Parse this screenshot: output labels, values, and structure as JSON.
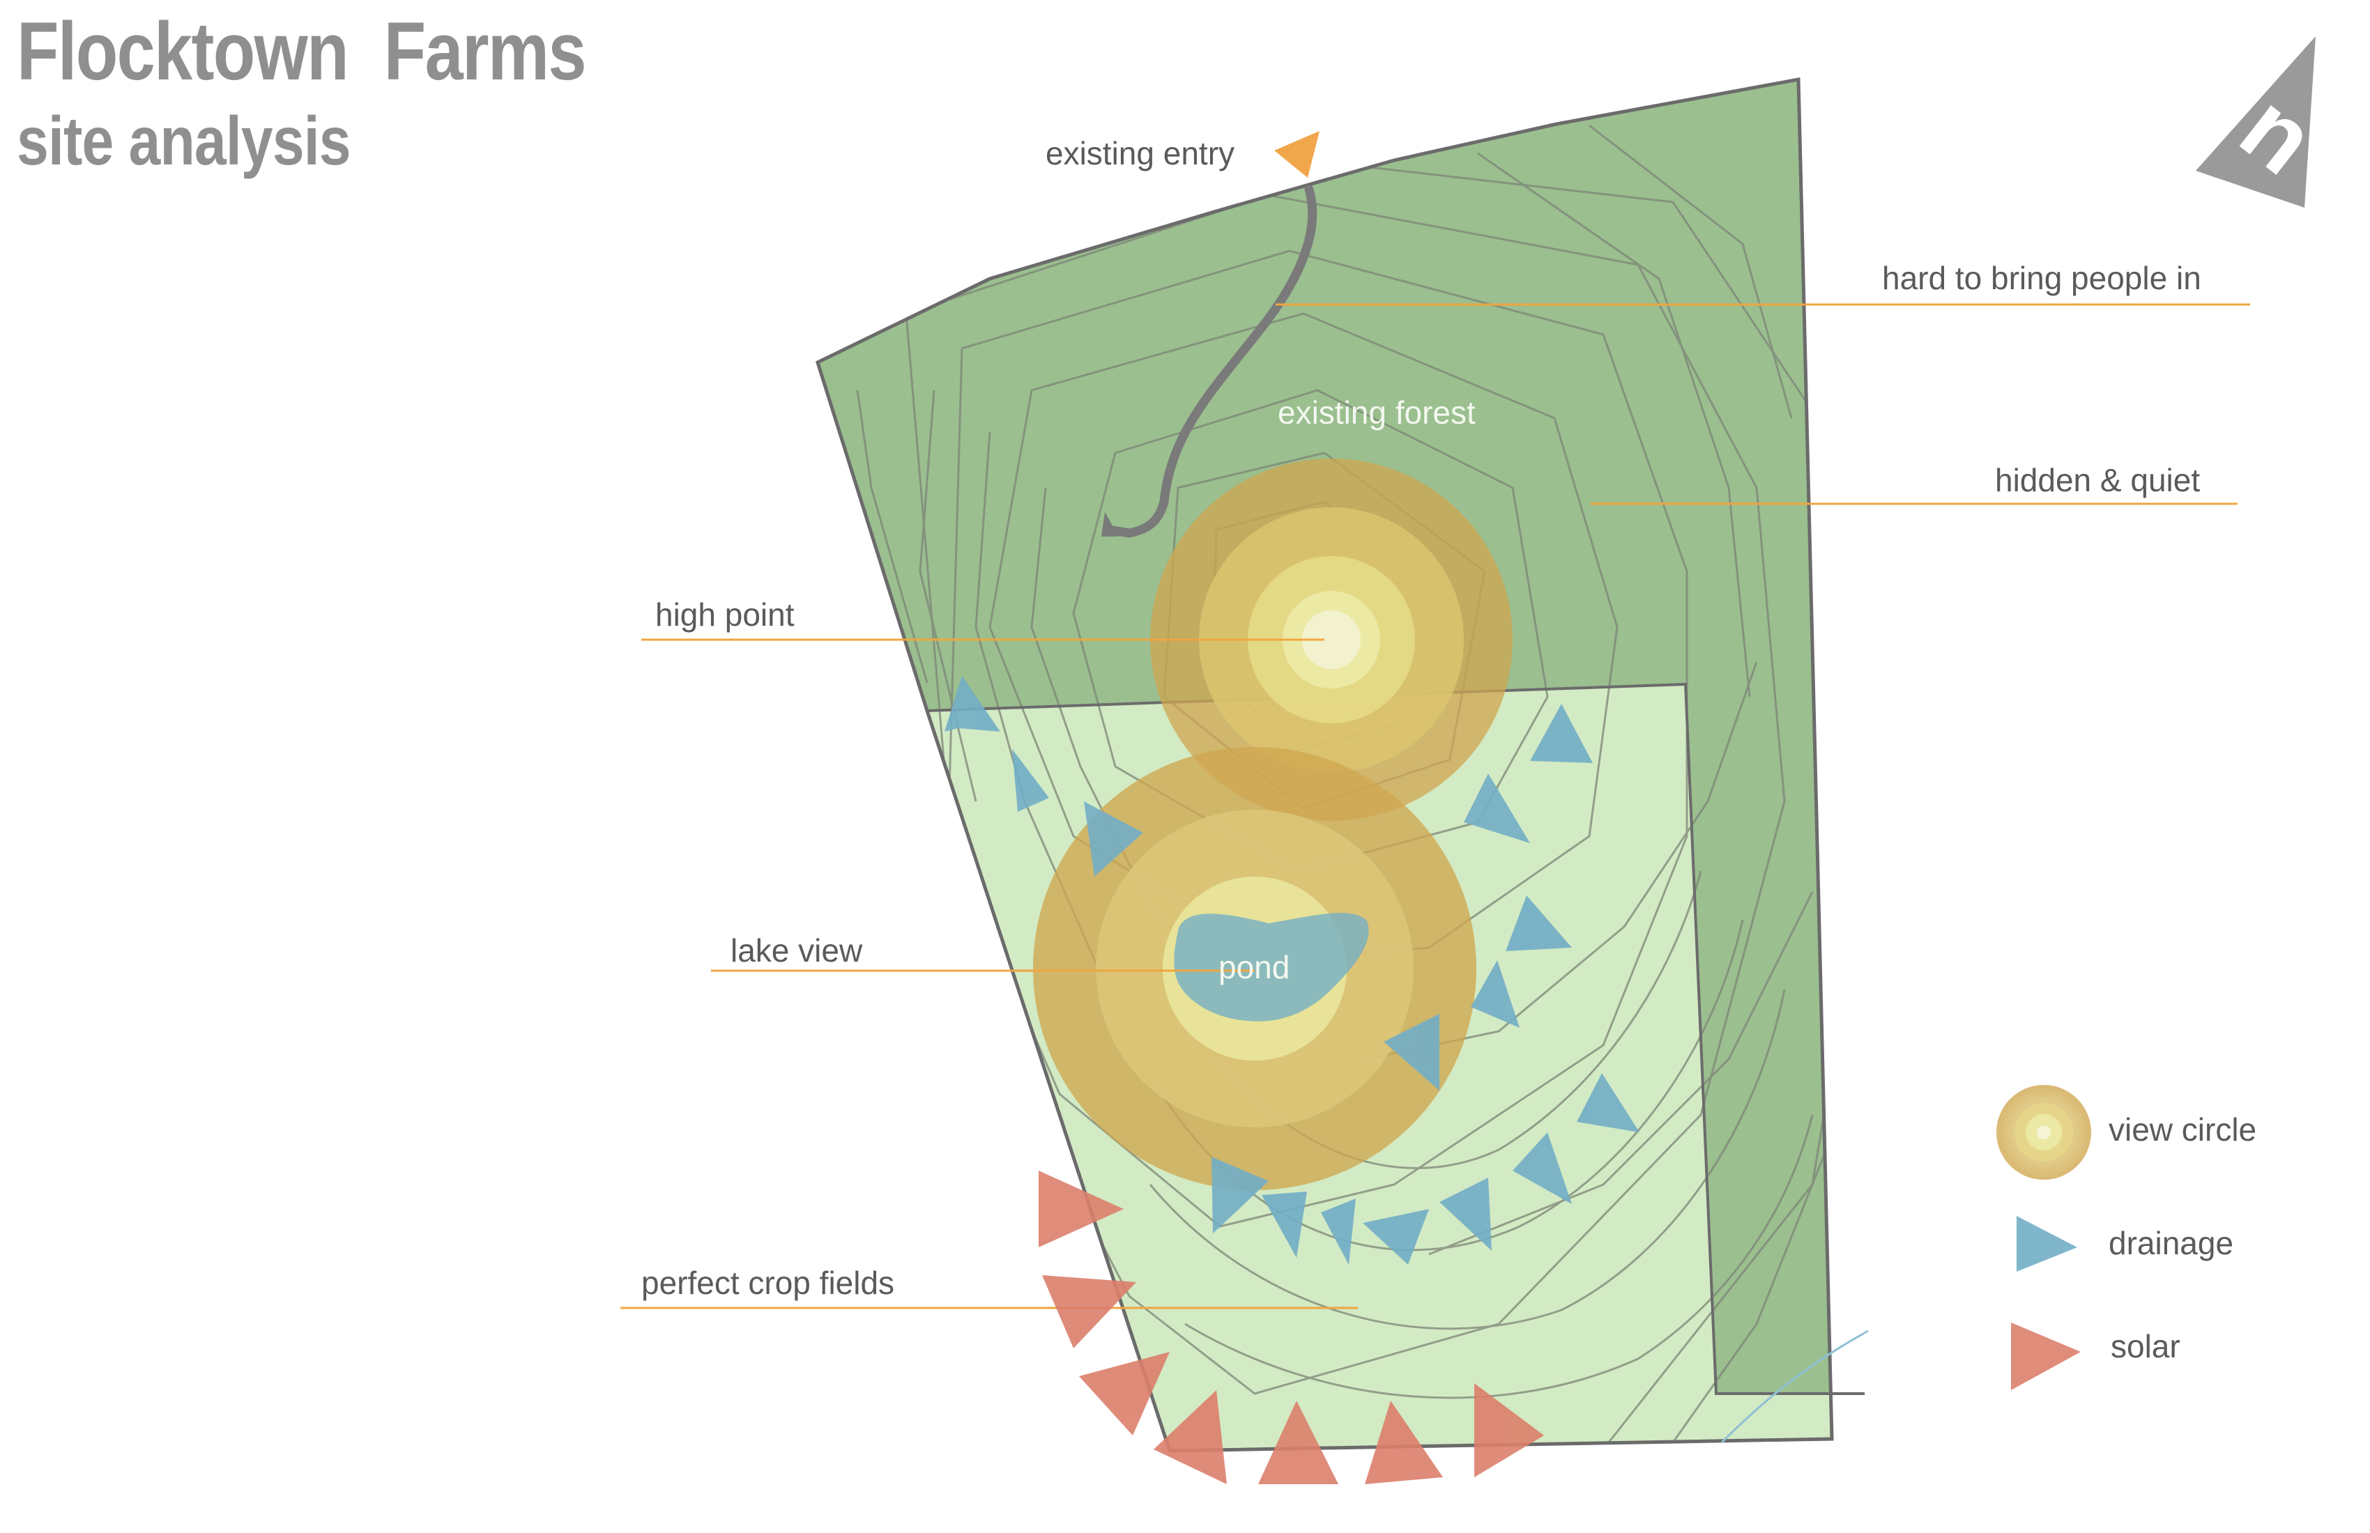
{
  "title": "Flocktown  Farms",
  "subtitle": "site analysis",
  "compass_letter": "n",
  "map_labels": {
    "existing_forest": "existing forest",
    "pond": "pond"
  },
  "callouts": {
    "existing_entry": "existing entry",
    "hard_to_bring_people_in": "hard to bring people in",
    "hidden_quiet": "hidden & quiet",
    "high_point": "high point",
    "lake_view": "lake view",
    "perfect_crop_fields": "perfect crop fields"
  },
  "legend": {
    "view_circle": "view circle",
    "drainage": "drainage",
    "solar": "solar"
  },
  "colors": {
    "forest": "#9bbf8f",
    "field": "#d3ebc4",
    "contour": "#7d8577",
    "drainage": "#72aec7",
    "solar": "#dc7f6c",
    "view_circle": "#d4ac5c",
    "leader_line": "#efa640",
    "entry_marker": "#f0a64a",
    "road": "#7a7a7a",
    "text": "#5a5a5a",
    "title": "#8f8f8f"
  },
  "icons": {
    "compass": "north-arrow-icon",
    "drainage": "blue-triangle-icon",
    "solar": "red-triangle-icon",
    "view_circle": "concentric-circle-icon",
    "entry": "orange-triangle-icon"
  }
}
